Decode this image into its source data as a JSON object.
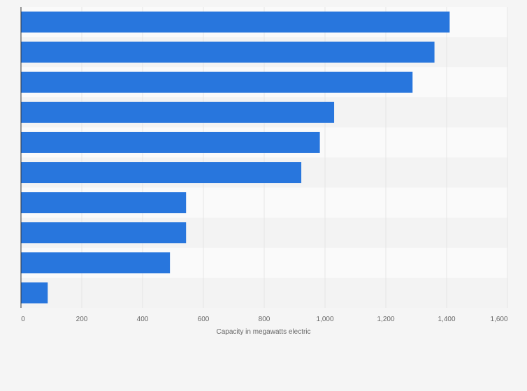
{
  "chart_data": {
    "type": "bar",
    "orientation": "horizontal",
    "categories": [
      "",
      "",
      "",
      "",
      "",
      "",
      "",
      "",
      "",
      ""
    ],
    "values": [
      1410,
      1360,
      1288,
      1030,
      983,
      922,
      543,
      543,
      490,
      88
    ],
    "title": "",
    "xlabel": "Capacity in megawatts electric",
    "ylabel": "",
    "xlim": [
      0,
      1600
    ],
    "xticks": [
      0,
      200,
      400,
      600,
      800,
      1000,
      1200,
      1400,
      1600
    ],
    "xtick_labels": [
      "0",
      "200",
      "400",
      "600",
      "800",
      "1,000",
      "1,200",
      "1,400",
      "1,600"
    ],
    "grid": true,
    "legend": "none",
    "colors": {
      "bar": "#2876dd",
      "band_light": "#fafafa",
      "band_dark": "#f3f3f3",
      "gridline": "#e6e6e6",
      "axis": "#333333",
      "background": "#f5f5f5"
    }
  }
}
